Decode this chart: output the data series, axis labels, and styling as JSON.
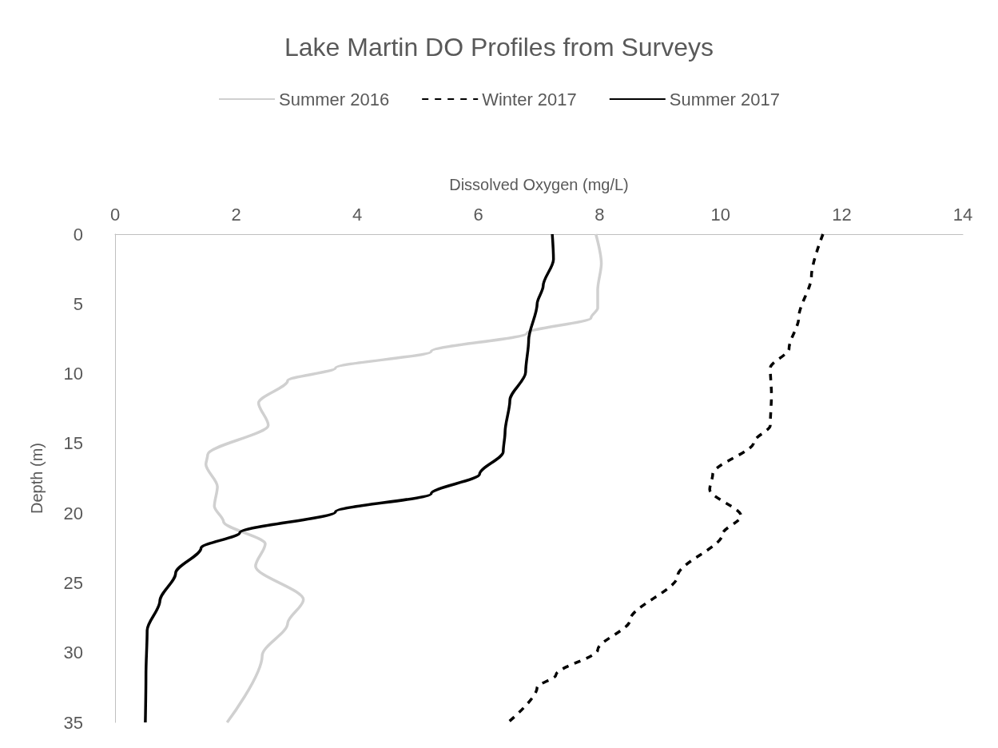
{
  "chart_data": {
    "type": "line",
    "title": "Lake Martin DO Profiles from Surveys",
    "xlabel": "Dissolved Oxygen (mg/L)",
    "ylabel": "Depth (m)",
    "xlim": [
      0,
      14
    ],
    "xticks": [
      0,
      2,
      4,
      6,
      8,
      10,
      12,
      14
    ],
    "ylim": [
      35,
      0
    ],
    "yticks": [
      0,
      5,
      10,
      15,
      20,
      25,
      30,
      35
    ],
    "grid": false,
    "legend": "top",
    "marker": "none",
    "series": [
      {
        "name": "Summer 2016",
        "color": "#d0d0d0",
        "line_style": "solid",
        "x": [
          7.94,
          8.03,
          7.97,
          7.97,
          7.86,
          6.8,
          5.22,
          3.64,
          2.85,
          2.37,
          2.53,
          1.53,
          1.5,
          1.69,
          1.64,
          1.79,
          2.48,
          2.32,
          3.11,
          2.85,
          2.43,
          1.85
        ],
        "values": [
          0,
          2.1,
          4,
          5.3,
          6,
          7.1,
          8.4,
          9.6,
          10.5,
          12.1,
          13.7,
          15.8,
          16.5,
          18.1,
          19.5,
          20.6,
          22.2,
          23.8,
          26.2,
          27.9,
          30.2,
          35
        ]
      },
      {
        "name": "Winter 2017",
        "color": "#000000",
        "line_style": "dashed",
        "x": [
          11.69,
          11.5,
          11.29,
          11.13,
          10.82,
          10.84,
          10.82,
          10.55,
          9.87,
          9.82,
          10.34,
          10.03,
          9.29,
          8.5,
          7.97,
          7.28,
          6.97,
          6.49
        ],
        "values": [
          0,
          3,
          6,
          8.2,
          9.6,
          11.5,
          13.7,
          14.9,
          17.2,
          18.3,
          20.2,
          21.5,
          24.5,
          27.7,
          29.8,
          31.6,
          32.5,
          35
        ]
      },
      {
        "name": "Summer 2017",
        "color": "#000000",
        "line_style": "solid",
        "x": [
          7.22,
          7.24,
          7.07,
          6.97,
          6.83,
          6.78,
          6.52,
          6.44,
          6.41,
          6.02,
          5.22,
          3.64,
          2.06,
          1.42,
          1.0,
          0.74,
          0.53,
          0.51,
          0.5
        ],
        "values": [
          0,
          1.8,
          3.7,
          5,
          7.6,
          9.9,
          11.9,
          14.2,
          15.6,
          17.2,
          18.6,
          19.9,
          21.4,
          22.5,
          24.3,
          26.3,
          28.4,
          31.6,
          35
        ]
      }
    ]
  }
}
